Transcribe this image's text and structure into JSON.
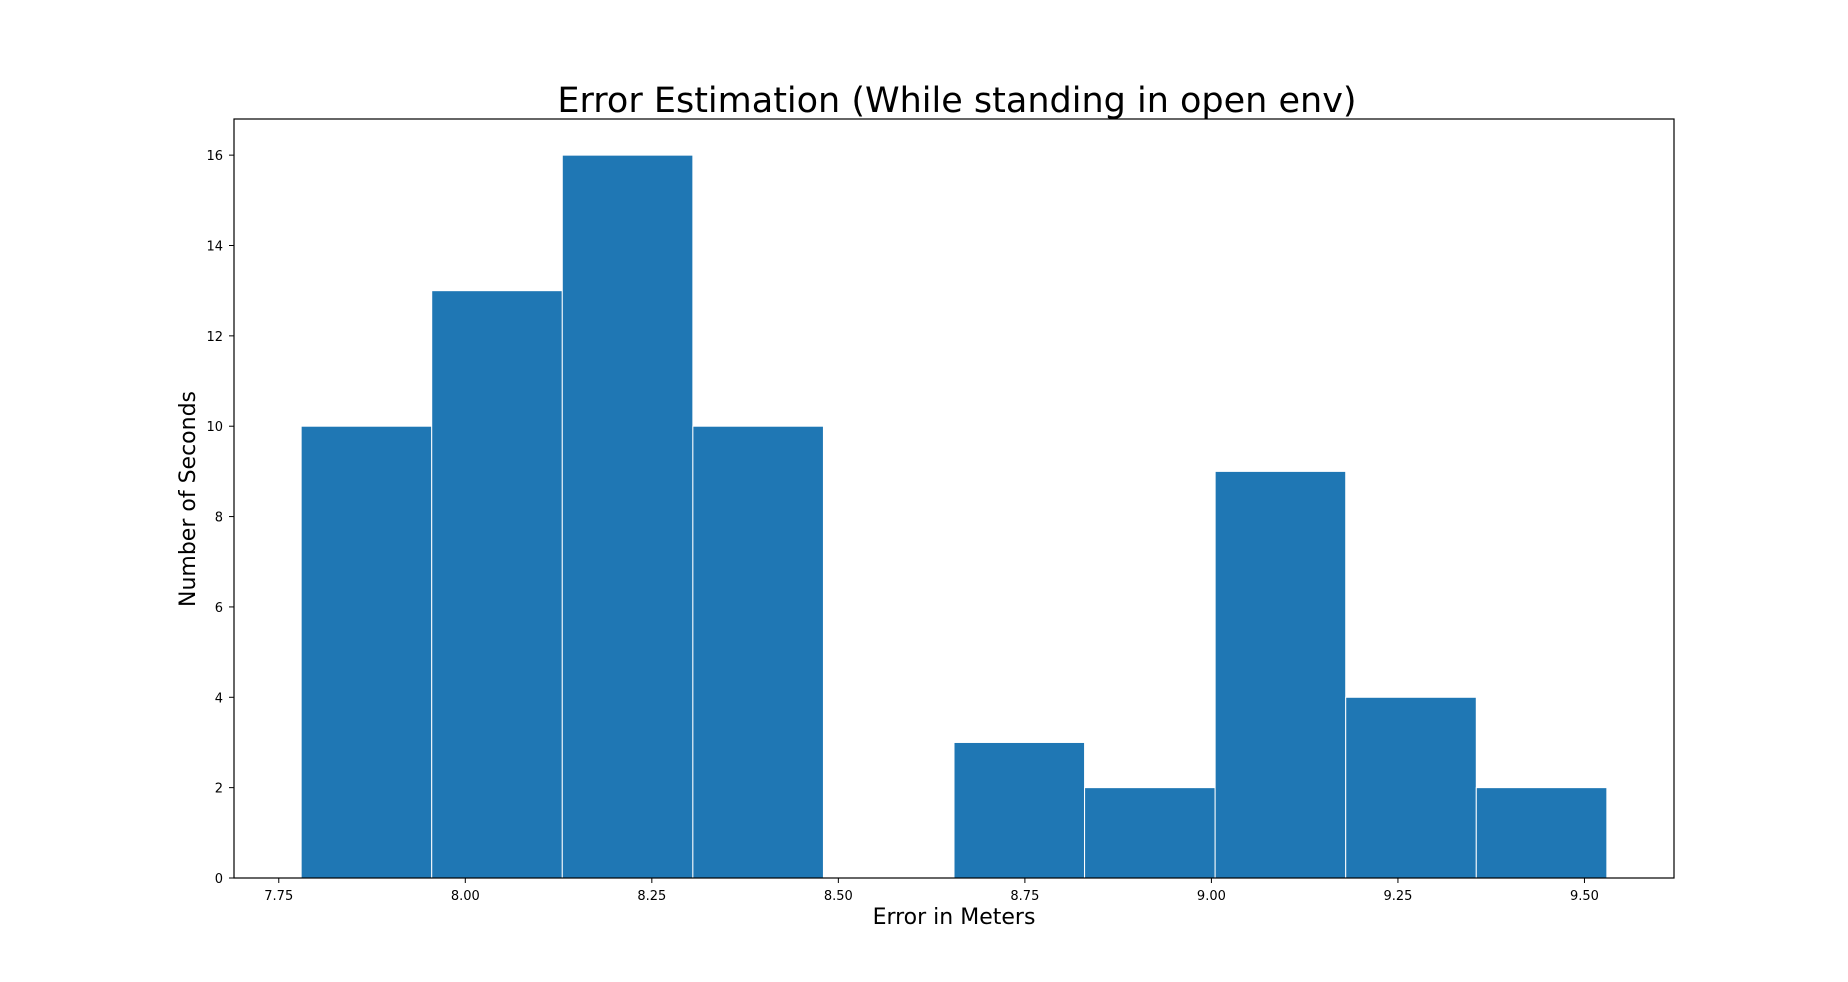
{
  "chart_data": {
    "type": "bar",
    "subtype": "histogram",
    "title": "Error Estimation (While standing in open env)",
    "xlabel": "Error in Meters",
    "ylabel": "Number of Seconds",
    "xlim": [
      7.69,
      9.62
    ],
    "ylim": [
      0,
      16.8
    ],
    "bin_edges": [
      7.78,
      7.955,
      8.13,
      8.305,
      8.48,
      8.655,
      8.83,
      9.005,
      9.18,
      9.355,
      9.53
    ],
    "values": [
      10,
      13,
      16,
      10,
      0,
      3,
      2,
      9,
      4,
      2
    ],
    "x_ticks": [
      7.75,
      8.0,
      8.25,
      8.5,
      8.75,
      9.0,
      9.25,
      9.5
    ],
    "x_tick_labels": [
      "7.75",
      "8.00",
      "8.25",
      "8.50",
      "8.75",
      "9.00",
      "9.25",
      "9.50"
    ],
    "y_ticks": [
      0,
      2,
      4,
      6,
      8,
      10,
      12,
      14,
      16
    ],
    "y_tick_labels": [
      "0",
      "2",
      "4",
      "6",
      "8",
      "10",
      "12",
      "14",
      "16"
    ],
    "bar_color": "#1f77b4",
    "bar_edge_color": "#ffffff",
    "grid": false,
    "legend": "none"
  }
}
